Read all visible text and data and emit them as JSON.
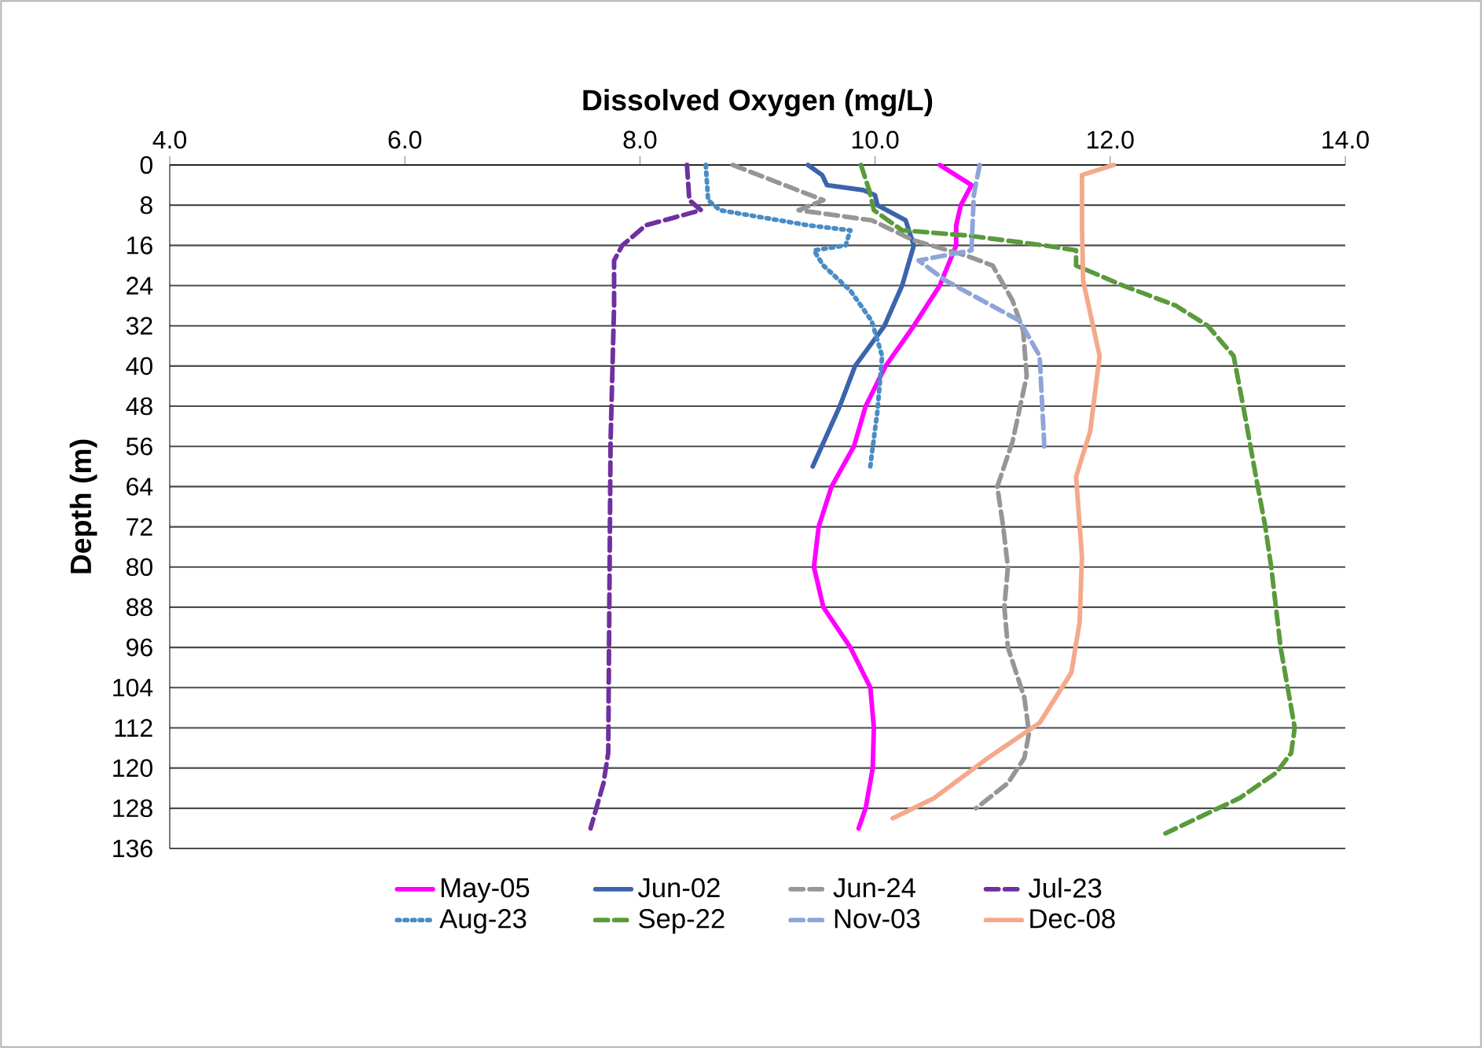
{
  "chart_data": {
    "type": "line",
    "xlabel": "Dissolved Oxygen (mg/L)",
    "ylabel": "Depth (m)",
    "xlim": [
      4,
      14
    ],
    "xticks": [
      {
        "value": 4,
        "label": "4.0"
      },
      {
        "value": 6,
        "label": "6.0"
      },
      {
        "value": 8,
        "label": "8.0"
      },
      {
        "value": 10,
        "label": "10.0"
      },
      {
        "value": 12,
        "label": "12.0"
      },
      {
        "value": 14,
        "label": "14.0"
      }
    ],
    "ylim": [
      136,
      0
    ],
    "yticks": [
      0,
      8,
      16,
      24,
      32,
      40,
      48,
      56,
      64,
      72,
      80,
      88,
      96,
      104,
      112,
      120,
      128,
      136
    ],
    "grid": "y",
    "legend": "bottom",
    "marker": "none",
    "series": [
      {
        "name": "May-05",
        "color": "#ff00ff",
        "line_style": "solid",
        "x": [
          10.55,
          10.82,
          10.73,
          10.69,
          10.69,
          10.55,
          10.33,
          10.09,
          9.92,
          9.82,
          9.63,
          9.52,
          9.48,
          9.56,
          9.79,
          9.96,
          9.99,
          9.98,
          9.92,
          9.86
        ],
        "values": [
          0,
          4,
          8,
          12,
          16,
          24,
          32,
          40,
          48,
          56,
          64,
          72,
          80,
          88,
          96,
          104,
          112,
          120,
          128,
          132
        ]
      },
      {
        "name": "Jun-02",
        "color": "#3c64ad",
        "line_style": "solid",
        "x": [
          9.43,
          9.55,
          9.59,
          9.9,
          10.0,
          10.02,
          10.26,
          10.33,
          10.23,
          10.08,
          9.83,
          9.7,
          9.47
        ],
        "values": [
          0,
          2,
          4,
          5,
          6,
          8,
          11,
          16,
          24,
          32,
          40,
          48,
          60
        ]
      },
      {
        "name": "Jun-24",
        "color": "#969696",
        "line_style": "dashed",
        "x": [
          8.79,
          9.56,
          9.35,
          9.97,
          10.33,
          10.77,
          11.0,
          11.17,
          11.26,
          11.29,
          11.17,
          11.04,
          11.09,
          11.13,
          11.1,
          11.13,
          11.27,
          11.31,
          11.27,
          11.13,
          10.86
        ],
        "values": [
          0,
          7,
          9,
          11,
          15,
          18,
          20,
          27,
          33,
          42,
          55,
          64,
          72,
          80,
          88,
          96,
          106,
          113,
          118,
          123,
          128
        ]
      },
      {
        "name": "Jul-23",
        "color": "#7030a0",
        "line_style": "dashed",
        "x": [
          8.4,
          8.42,
          8.52,
          8.05,
          7.85,
          7.78,
          7.78,
          7.75,
          7.74,
          7.73,
          7.69,
          7.58
        ],
        "values": [
          0,
          7,
          9,
          12,
          16,
          19,
          28,
          55,
          86,
          117,
          123,
          132
        ]
      },
      {
        "name": "Aug-23",
        "color": "#4a8cc4",
        "line_style": "dotted",
        "x": [
          8.56,
          8.58,
          8.68,
          9.43,
          9.79,
          9.75,
          9.48,
          9.56,
          9.79,
          9.97,
          10.06,
          10.02,
          9.97,
          9.96
        ],
        "values": [
          0,
          7,
          9,
          12,
          13,
          16,
          17,
          20,
          25,
          31,
          38,
          49,
          58,
          60
        ]
      },
      {
        "name": "Sep-22",
        "color": "#5a9a3c",
        "line_style": "dashed",
        "x": [
          9.88,
          9.95,
          9.99,
          10.23,
          10.77,
          11.44,
          11.71,
          11.71,
          12.11,
          12.56,
          12.83,
          13.05,
          13.14,
          13.24,
          13.32,
          13.37,
          13.45,
          13.57,
          13.54,
          13.41,
          13.1,
          12.47
        ],
        "values": [
          0,
          5,
          9,
          13,
          14,
          16,
          17,
          20,
          24,
          28,
          32,
          38,
          49,
          62,
          72,
          80,
          96,
          112,
          117,
          121,
          126,
          133
        ]
      },
      {
        "name": "Nov-03",
        "color": "#8ea5d8",
        "line_style": "dashed",
        "x": [
          10.89,
          10.84,
          10.82,
          10.37,
          10.6,
          11.23,
          11.4,
          11.44
        ],
        "values": [
          0,
          6,
          17,
          19,
          23,
          31,
          38,
          56
        ]
      },
      {
        "name": "Dec-08",
        "color": "#f4a98a",
        "line_style": "solid",
        "x": [
          12.03,
          11.76,
          11.76,
          11.77,
          11.91,
          11.83,
          11.71,
          11.76,
          11.74,
          11.67,
          11.4,
          10.96,
          10.5,
          10.15
        ],
        "values": [
          0,
          2,
          12,
          23,
          38,
          53,
          62,
          78,
          91,
          101,
          111,
          118,
          126,
          130
        ]
      }
    ]
  }
}
